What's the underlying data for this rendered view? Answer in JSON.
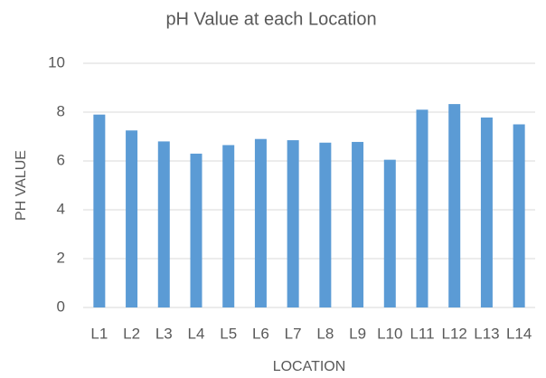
{
  "chart_data": {
    "type": "bar",
    "title": "pH Value at each Location",
    "x_label": "LOCATION",
    "y_label": "PH VALUE",
    "categories": [
      "L1",
      "L2",
      "L3",
      "L4",
      "L5",
      "L6",
      "L7",
      "L8",
      "L9",
      "L10",
      "L11",
      "L12",
      "L13",
      "L14"
    ],
    "values": [
      7.9,
      7.25,
      6.8,
      6.3,
      6.65,
      6.9,
      6.85,
      6.75,
      6.78,
      6.05,
      8.1,
      8.33,
      7.78,
      7.5
    ],
    "color": "#5b9bd5",
    "ylim": [
      0,
      10
    ],
    "yticks": [
      0,
      2,
      4,
      6,
      8,
      10
    ],
    "grid": true
  }
}
